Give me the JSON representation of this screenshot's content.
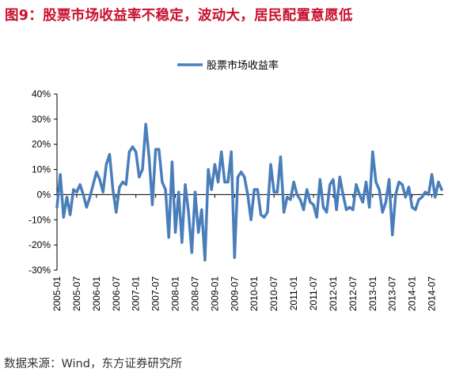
{
  "title": "图9：股票市场收益率不稳定，波动大，居民配置意愿低",
  "source": "数据来源：Wind，东方证券研究所",
  "chart_data": {
    "type": "line",
    "title": "",
    "xlabel": "",
    "ylabel": "",
    "ylim": [
      -0.3,
      0.4
    ],
    "yticks": [
      -0.3,
      -0.2,
      -0.1,
      0.0,
      0.1,
      0.2,
      0.3,
      0.4
    ],
    "ytick_labels": [
      "-30%",
      "-20%",
      "-10%",
      "0%",
      "10%",
      "20%",
      "30%",
      "40%"
    ],
    "xtick_labels": [
      "2005-01",
      "2005-07",
      "2006-01",
      "2006-07",
      "2007-01",
      "2007-07",
      "2008-01",
      "2008-07",
      "2009-01",
      "2009-07",
      "2010-01",
      "2010-07",
      "2011-01",
      "2011-07",
      "2012-01",
      "2012-07",
      "2013-01",
      "2013-07",
      "2014-01",
      "2014-07"
    ],
    "legend_position": "top-center",
    "grid": false,
    "series": [
      {
        "name": "股票市场收益率",
        "color": "#4a7ebb",
        "values": [
          -0.05,
          0.08,
          -0.09,
          -0.01,
          -0.08,
          0.02,
          0.01,
          0.04,
          0.0,
          -0.05,
          -0.01,
          0.04,
          0.09,
          0.06,
          0.01,
          0.12,
          0.16,
          0.02,
          -0.07,
          0.03,
          0.05,
          0.04,
          0.17,
          0.19,
          0.17,
          0.07,
          0.1,
          0.28,
          0.15,
          -0.04,
          0.18,
          0.18,
          0.05,
          0.02,
          -0.17,
          0.13,
          -0.15,
          0.01,
          -0.19,
          0.04,
          -0.07,
          -0.23,
          0.01,
          -0.15,
          -0.06,
          -0.26,
          0.1,
          0.02,
          0.12,
          0.05,
          0.17,
          0.05,
          0.05,
          0.17,
          -0.25,
          0.07,
          0.09,
          0.07,
          0.0,
          -0.1,
          0.02,
          0.02,
          -0.08,
          -0.09,
          -0.07,
          0.12,
          0.01,
          0.01,
          0.15,
          -0.07,
          -0.01,
          -0.02,
          0.05,
          0.0,
          -0.02,
          -0.06,
          0.02,
          -0.03,
          -0.04,
          -0.09,
          0.06,
          -0.05,
          -0.07,
          0.04,
          0.06,
          -0.06,
          0.07,
          0.0,
          -0.06,
          -0.05,
          -0.06,
          0.04,
          0.0,
          -0.03,
          0.05,
          -0.05,
          0.17,
          0.05,
          0.02,
          -0.07,
          -0.03,
          0.06,
          -0.16,
          0.0,
          0.05,
          0.04,
          -0.01,
          0.03,
          -0.05,
          -0.06,
          -0.02,
          -0.01,
          0.01,
          0.0,
          0.08,
          -0.01,
          0.05,
          0.02
        ]
      }
    ]
  }
}
